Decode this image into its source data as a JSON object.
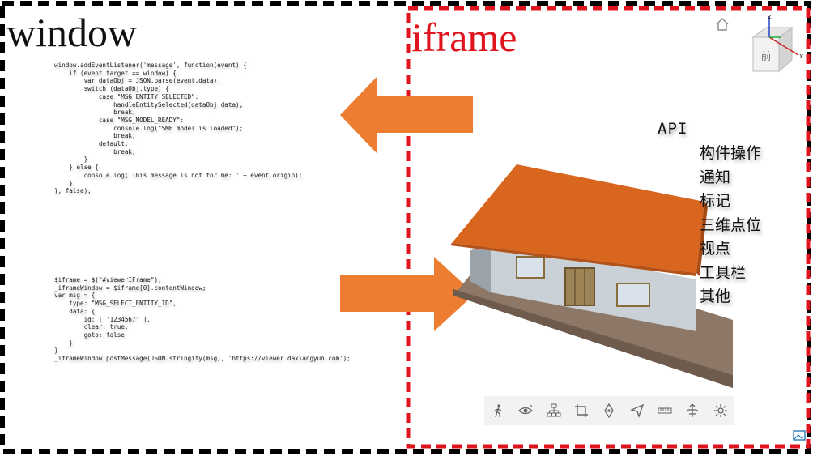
{
  "labels": {
    "window": "window",
    "iframe": "iframe"
  },
  "code": {
    "listener": "window.addEventListener('message', function(event) {\n    if (event.target == window) {\n        var dataObj = JSON.parse(event.data);\n        switch (dataObj.type) {\n            case \"MSG_ENTITY_SELECTED\":\n                handleEntitySelected(dataObj.data);\n                break;\n            case \"MSG_MODEL_READY\":\n                console.log(\"SME model is loaded\");\n                break;\n            default:\n                break;\n        }\n    } else {\n        console.log('This message is not for me: ' + event.origin);\n    }\n}, false);",
    "sender": "$iframe = $(\"#viewerIFrame\");\n_iframeWindow = $iframe[0].contentWindow;\nvar msg = {\n    type: \"MSG_SELECT_ENTITY_ID\",\n    data: {\n        id: [ '1234567' ],\n        clear: true,\n        goto: false\n    }\n}\n_iframeWindow.postMessage(JSON.stringify(msg), 'https://viewer.daxiangyun.com');"
  },
  "api": {
    "title": "API",
    "items": [
      "构件操作",
      "通知",
      "标记",
      "三维点位",
      "视点",
      "工具栏",
      "其他"
    ]
  },
  "viewcube": {
    "face_label": "前",
    "axis_z": "z",
    "axis_x": "x"
  },
  "toolbar": {
    "buttons": [
      "walk-icon",
      "eye-icon",
      "tree-icon",
      "crop-icon",
      "pen-icon",
      "navigate-icon",
      "measure-icon",
      "explode-icon",
      "gear-icon"
    ]
  },
  "colors": {
    "window_border": "#000000",
    "iframe_border": "#e0141e",
    "arrow": "#ed7d31",
    "roof": "#d9661f",
    "wall": "#b9c2c9",
    "base": "#8d7766"
  }
}
